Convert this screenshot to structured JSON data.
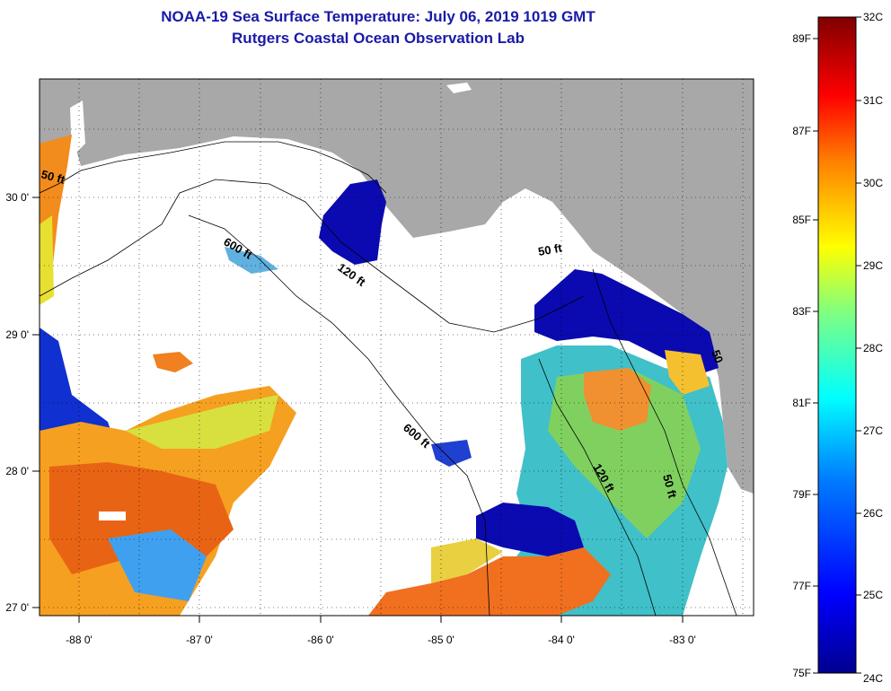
{
  "title_line1": "NOAA-19 Sea Surface Temperature:  July 06, 2019 1019 GMT",
  "title_line2": "Rutgers Coastal Ocean Observation Lab",
  "axes": {
    "lon_labels": [
      "-88 0'",
      "-87 0'",
      "-86 0'",
      "-85 0'",
      "-84 0'",
      "-83 0'"
    ],
    "lat_labels": [
      "30 0'",
      "29 0'",
      "28 0'",
      "27 0'"
    ]
  },
  "contour_labels": [
    "50 ft",
    "600 ft",
    "120 ft",
    "50 ft",
    "600 ft",
    "120 ft",
    "50 ft",
    "50"
  ],
  "colorbar": {
    "fahrenheit_labels": [
      "89F",
      "87F",
      "85F",
      "83F",
      "81F",
      "79F",
      "77F",
      "75F"
    ],
    "celsius_labels": [
      "32C",
      "31C",
      "30C",
      "29C",
      "28C",
      "27C",
      "26C",
      "25C",
      "24C"
    ],
    "colors": [
      "#00008f",
      "#0000ff",
      "#0080ff",
      "#00ffff",
      "#80ff80",
      "#ffff00",
      "#ff8000",
      "#ff0000",
      "#800000"
    ]
  },
  "colors": {
    "land": "#a8a8a8",
    "ocean_no_data": "#ffffff",
    "title": "#1a1aa8"
  }
}
